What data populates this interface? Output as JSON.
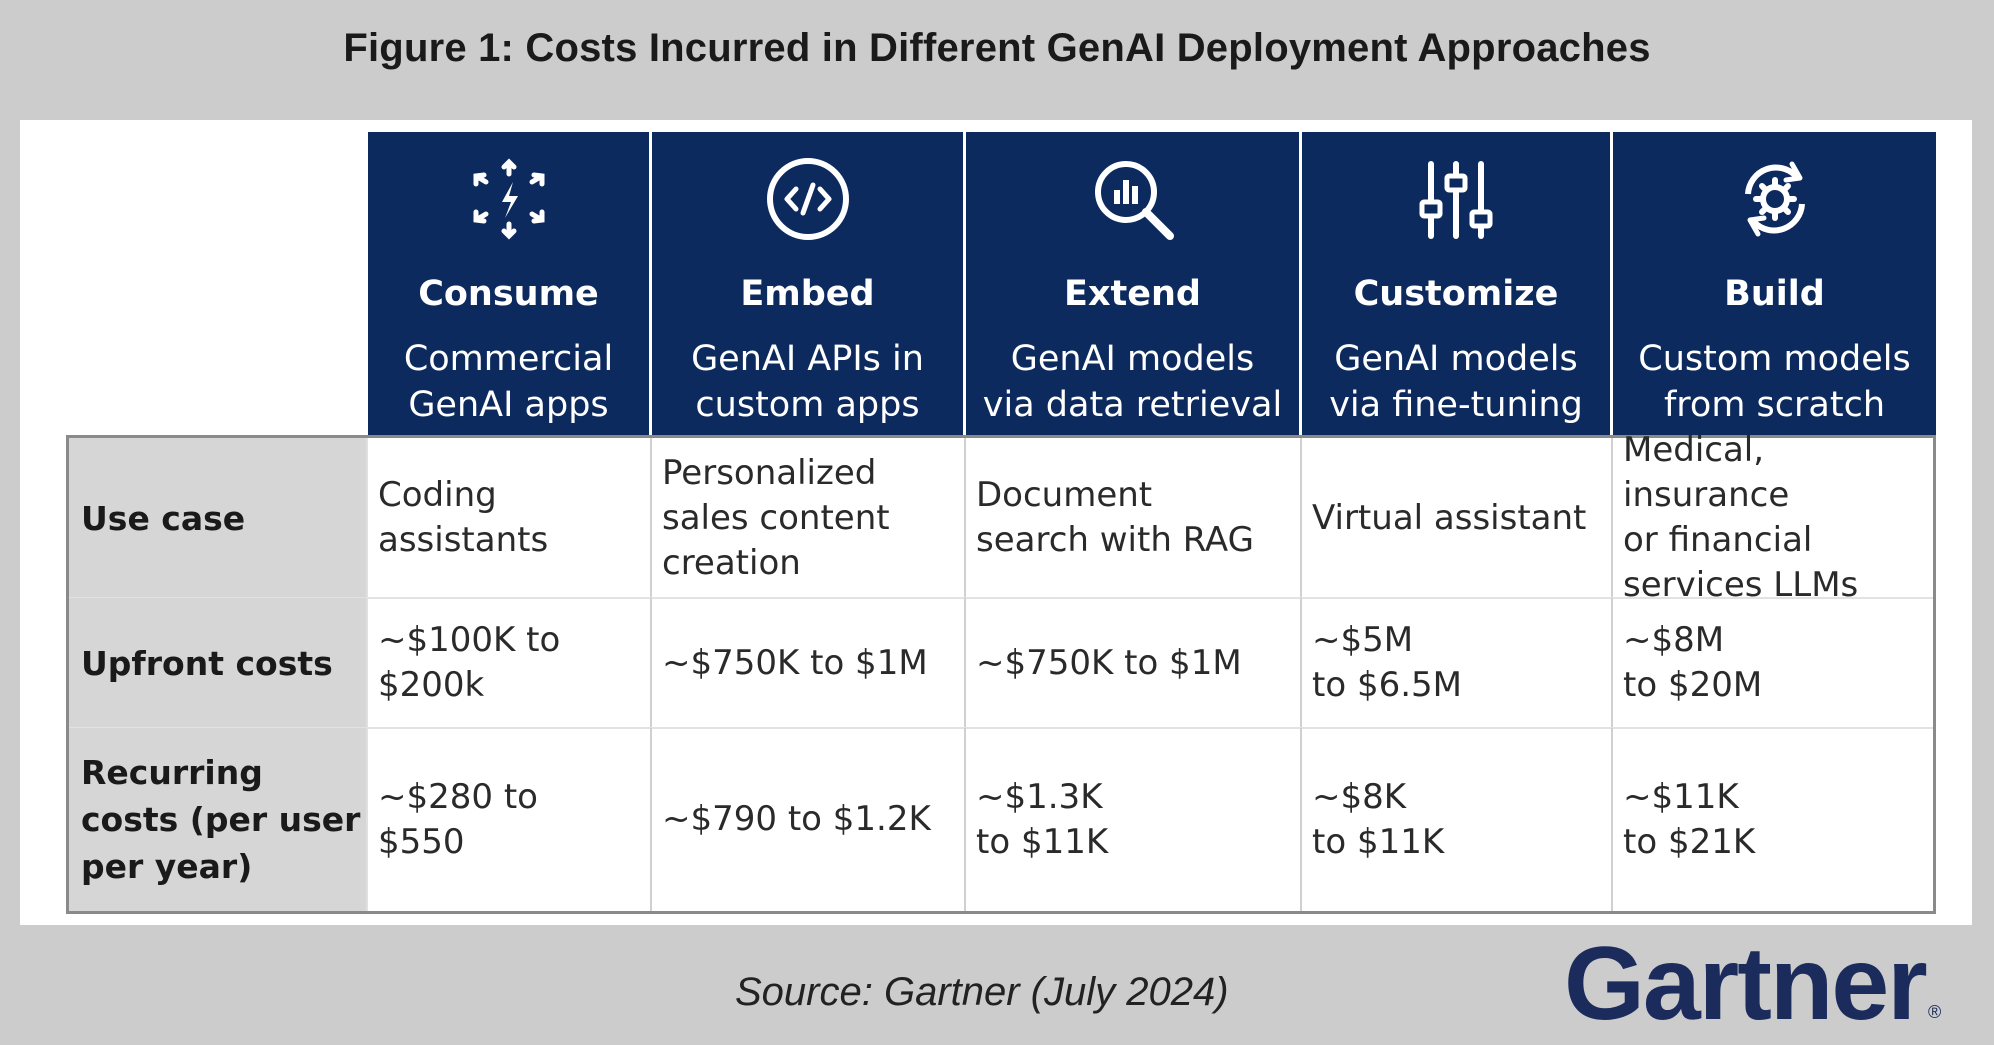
{
  "title": "Figure 1: Costs Incurred in Different GenAI Deployment Approaches",
  "source": "Source: Gartner (July 2024)",
  "logo": "Gartner",
  "logo_mark": "®",
  "colors": {
    "header_bg": "#0d2a5e",
    "label_bg": "#d6d6d6",
    "page_bg": "#cccccc",
    "logo": "#1b2b5c"
  },
  "chart_data": {
    "type": "table",
    "columns": [
      {
        "name": "Consume",
        "sub": "Commercial\nGenAI apps",
        "icon": "scatter-arrows-icon"
      },
      {
        "name": "Embed",
        "sub": "GenAI APIs in\ncustom apps",
        "icon": "code-icon"
      },
      {
        "name": "Extend",
        "sub": "GenAI models\nvia data retrieval",
        "icon": "magnifier-chart-icon"
      },
      {
        "name": "Customize",
        "sub": "GenAI models\nvia fine-tuning",
        "icon": "sliders-icon"
      },
      {
        "name": "Build",
        "sub": "Custom models\nfrom scratch",
        "icon": "gear-cycle-icon"
      }
    ],
    "rows": [
      {
        "label": "Use case",
        "cells": [
          "Coding\nassistants",
          "Personalized\nsales content\ncreation",
          "Document\nsearch with RAG",
          "Virtual assistant",
          "Medical, insurance\nor financial\nservices LLMs"
        ]
      },
      {
        "label": "Upfront costs",
        "cells": [
          "~$100K to\n$200k",
          "~$750K to $1M",
          "~$750K to $1M",
          "~$5M\nto $6.5M",
          "~$8M\nto $20M"
        ]
      },
      {
        "label": "Recurring\ncosts (per user\nper year)",
        "cells": [
          "~$280 to\n$550",
          "~$790 to $1.2K",
          "~$1.3K\nto $11K",
          "~$8K\nto $11K",
          "~$11K\nto $21K"
        ]
      }
    ]
  }
}
